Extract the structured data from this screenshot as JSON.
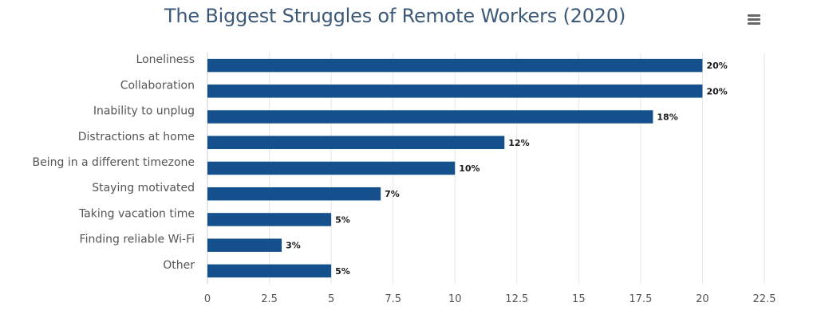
{
  "chart_data": {
    "type": "bar",
    "orientation": "horizontal",
    "title": "The Biggest Struggles of Remote Workers (2020)",
    "categories": [
      "Loneliness",
      "Collaboration",
      "Inability to unplug",
      "Distractions at home",
      "Being in a different timezone",
      "Staying motivated",
      "Taking vacation time",
      "Finding reliable Wi-Fi",
      "Other"
    ],
    "values": [
      20,
      20,
      18,
      12,
      10,
      7,
      5,
      3,
      5
    ],
    "data_labels": [
      "20%",
      "20%",
      "18%",
      "12%",
      "10%",
      "7%",
      "5%",
      "3%",
      "5%"
    ],
    "xlim": [
      0,
      22.5
    ],
    "xticks": [
      "0",
      "2.5",
      "5",
      "7.5",
      "10",
      "12.5",
      "15",
      "17.5",
      "20",
      "22.5"
    ],
    "xlabel": "",
    "ylabel": "",
    "grid": "vertical",
    "legend": "none",
    "bar_color": "#14508c"
  }
}
